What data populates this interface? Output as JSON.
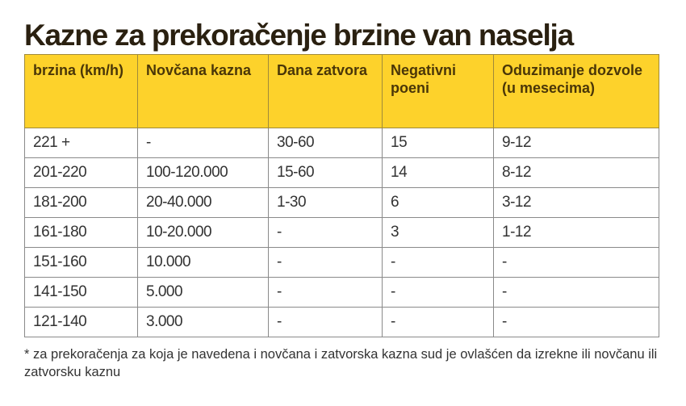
{
  "title": "Kazne za prekoračenje brzine van naselja",
  "headers": [
    "brzina (km/h)",
    "Novčana kazna",
    "Dana zatvora",
    "Negativni poeni",
    "Oduzimanje dozvole (u mesecima)"
  ],
  "rows": [
    [
      "221 +",
      "-",
      "30-60",
      "15",
      "9-12"
    ],
    [
      "201-220",
      "100-120.000",
      "15-60",
      "14",
      "8-12"
    ],
    [
      "181-200",
      "20-40.000",
      "1-30",
      "6",
      "3-12"
    ],
    [
      "161-180",
      "10-20.000",
      "-",
      "3",
      "1-12"
    ],
    [
      "151-160",
      "10.000",
      "-",
      "-",
      "-"
    ],
    [
      "141-150",
      "5.000",
      "-",
      "-",
      "-"
    ],
    [
      "121-140",
      "3.000",
      "-",
      "-",
      "-"
    ]
  ],
  "footnote": "* za prekoračenja za koja je navedena i novčana i zatvorska kazna sud je ovlašćen da izrekne ili novčanu ili zatvorsku kaznu"
}
